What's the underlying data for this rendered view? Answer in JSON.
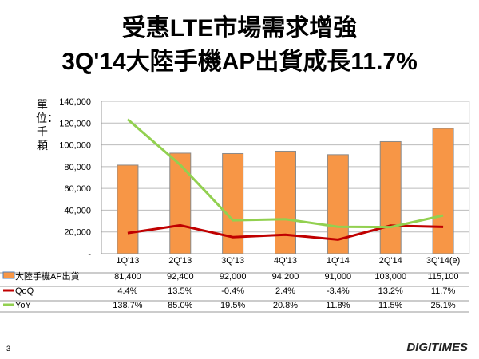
{
  "title": {
    "line1": "受惠LTE市場需求增強",
    "line2": "3Q'14大陸手機AP出貨成長11.7%"
  },
  "unit_label": "單位：千顆",
  "slide_number": "3",
  "logo": "DIGITIMES",
  "chart_data": {
    "type": "bar",
    "categories": [
      "1Q'13",
      "2Q'13",
      "3Q'13",
      "4Q'13",
      "1Q'14",
      "2Q'14",
      "3Q'14(e)"
    ],
    "ylim": [
      0,
      140000
    ],
    "yticks": [
      "-",
      "20,000",
      "40,000",
      "60,000",
      "80,000",
      "100,000",
      "120,000",
      "140,000"
    ],
    "ylabel": "單位：千顆",
    "grid": true,
    "series": [
      {
        "name": "大陸手機AP出貨",
        "type": "bar",
        "color": "#F79646",
        "values": [
          81400,
          92400,
          92000,
          94200,
          91000,
          103000,
          115100
        ],
        "labels": [
          "81,400",
          "92,400",
          "92,000",
          "94,200",
          "91,000",
          "103,000",
          "115,100"
        ]
      },
      {
        "name": "QoQ",
        "type": "line",
        "axis": "secondary",
        "color": "#C00000",
        "values": [
          4.4,
          13.5,
          -0.4,
          2.4,
          -3.4,
          13.2,
          11.7
        ],
        "labels": [
          "4.4%",
          "13.5%",
          "-0.4%",
          "2.4%",
          "-3.4%",
          "13.2%",
          "11.7%"
        ]
      },
      {
        "name": "YoY",
        "type": "line",
        "axis": "secondary",
        "color": "#92D050",
        "values": [
          138.7,
          85.0,
          19.5,
          20.8,
          11.8,
          11.5,
          25.1
        ],
        "labels": [
          "138.7%",
          "85.0%",
          "19.5%",
          "20.8%",
          "11.8%",
          "11.5%",
          "25.1%"
        ]
      }
    ],
    "secondary_ylim": [
      -20,
      160
    ],
    "legend": "data-table"
  }
}
